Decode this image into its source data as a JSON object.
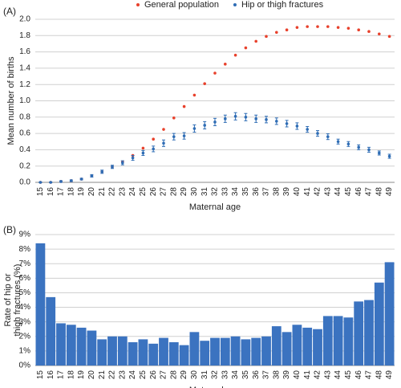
{
  "chart_data": [
    {
      "type": "scatter",
      "panel_label": "(A)",
      "xlabel": "Maternal age",
      "ylabel": "Mean number of births",
      "legend": "top",
      "grid": true,
      "categories": [
        "15",
        "16",
        "17",
        "18",
        "19",
        "20",
        "21",
        "22",
        "23",
        "24",
        "25",
        "26",
        "27",
        "28",
        "29",
        "30",
        "31",
        "32",
        "33",
        "34",
        "35",
        "36",
        "37",
        "38",
        "39",
        "40",
        "41",
        "42",
        "43",
        "44",
        "45",
        "46",
        "47",
        "48",
        "49"
      ],
      "series": [
        {
          "name": "General population",
          "color": "#e8412c",
          "values": [
            0.0,
            0.0,
            0.01,
            0.02,
            0.04,
            0.08,
            0.13,
            0.19,
            0.25,
            0.33,
            0.42,
            0.53,
            0.65,
            0.79,
            0.93,
            1.07,
            1.21,
            1.34,
            1.45,
            1.56,
            1.65,
            1.73,
            1.79,
            1.84,
            1.87,
            1.9,
            1.91,
            1.91,
            1.91,
            1.9,
            1.89,
            1.87,
            1.85,
            1.82,
            1.79
          ]
        },
        {
          "name": "Hip or thigh fractures",
          "color": "#2f6db5",
          "values": [
            0.0,
            0.0,
            0.01,
            0.02,
            0.04,
            0.08,
            0.13,
            0.19,
            0.24,
            0.3,
            0.36,
            0.41,
            0.48,
            0.56,
            0.57,
            0.66,
            0.7,
            0.74,
            0.78,
            0.81,
            0.8,
            0.78,
            0.77,
            0.75,
            0.72,
            0.69,
            0.65,
            0.6,
            0.56,
            0.5,
            0.47,
            0.43,
            0.4,
            0.36,
            0.32
          ],
          "errors": [
            0.005,
            0.005,
            0.01,
            0.01,
            0.01,
            0.015,
            0.02,
            0.02,
            0.025,
            0.03,
            0.03,
            0.035,
            0.04,
            0.04,
            0.04,
            0.045,
            0.045,
            0.045,
            0.045,
            0.045,
            0.045,
            0.045,
            0.04,
            0.04,
            0.04,
            0.04,
            0.035,
            0.035,
            0.035,
            0.03,
            0.03,
            0.03,
            0.03,
            0.025,
            0.025
          ]
        }
      ],
      "ylim": [
        0,
        2.0
      ],
      "yticks": [
        {
          "value": 0,
          "label": "0.0"
        },
        {
          "value": 0.2,
          "label": "0.2"
        },
        {
          "value": 0.4,
          "label": "0.4"
        },
        {
          "value": 0.6,
          "label": "0.6"
        },
        {
          "value": 0.8,
          "label": "0.8"
        },
        {
          "value": 1.0,
          "label": "1.0"
        },
        {
          "value": 1.2,
          "label": "1.2"
        },
        {
          "value": 1.4,
          "label": "1.4"
        },
        {
          "value": 1.6,
          "label": "1.6"
        },
        {
          "value": 1.8,
          "label": "1.8"
        },
        {
          "value": 2.0,
          "label": "2.0"
        }
      ]
    },
    {
      "type": "bar",
      "panel_label": "(B)",
      "xlabel": "Maternal age",
      "ylabel_lines": [
        "Rate of hip or",
        "thigh fractures (%)"
      ],
      "grid": true,
      "color": "#3b73c0",
      "categories": [
        "15",
        "16",
        "17",
        "18",
        "19",
        "20",
        "21",
        "22",
        "23",
        "24",
        "25",
        "26",
        "27",
        "28",
        "29",
        "30",
        "31",
        "32",
        "33",
        "34",
        "35",
        "36",
        "37",
        "38",
        "39",
        "40",
        "41",
        "42",
        "43",
        "44",
        "45",
        "46",
        "47",
        "48",
        "49"
      ],
      "values": [
        8.4,
        4.7,
        2.9,
        2.8,
        2.6,
        2.4,
        1.8,
        2.0,
        2.0,
        1.6,
        1.8,
        1.5,
        1.9,
        1.6,
        1.4,
        2.3,
        1.7,
        1.9,
        1.9,
        2.0,
        1.8,
        1.9,
        2.0,
        2.7,
        2.3,
        2.8,
        2.6,
        2.5,
        3.4,
        3.4,
        3.3,
        4.4,
        4.5,
        5.7,
        7.1
      ],
      "ylim": [
        0,
        9
      ],
      "yticks": [
        {
          "value": 0,
          "label": "0%"
        },
        {
          "value": 1,
          "label": "1%"
        },
        {
          "value": 2,
          "label": "2%"
        },
        {
          "value": 3,
          "label": "3%"
        },
        {
          "value": 4,
          "label": "4%"
        },
        {
          "value": 5,
          "label": "5%"
        },
        {
          "value": 6,
          "label": "6%"
        },
        {
          "value": 7,
          "label": "7%"
        },
        {
          "value": 8,
          "label": "8%"
        },
        {
          "value": 9,
          "label": "9%"
        }
      ]
    }
  ]
}
